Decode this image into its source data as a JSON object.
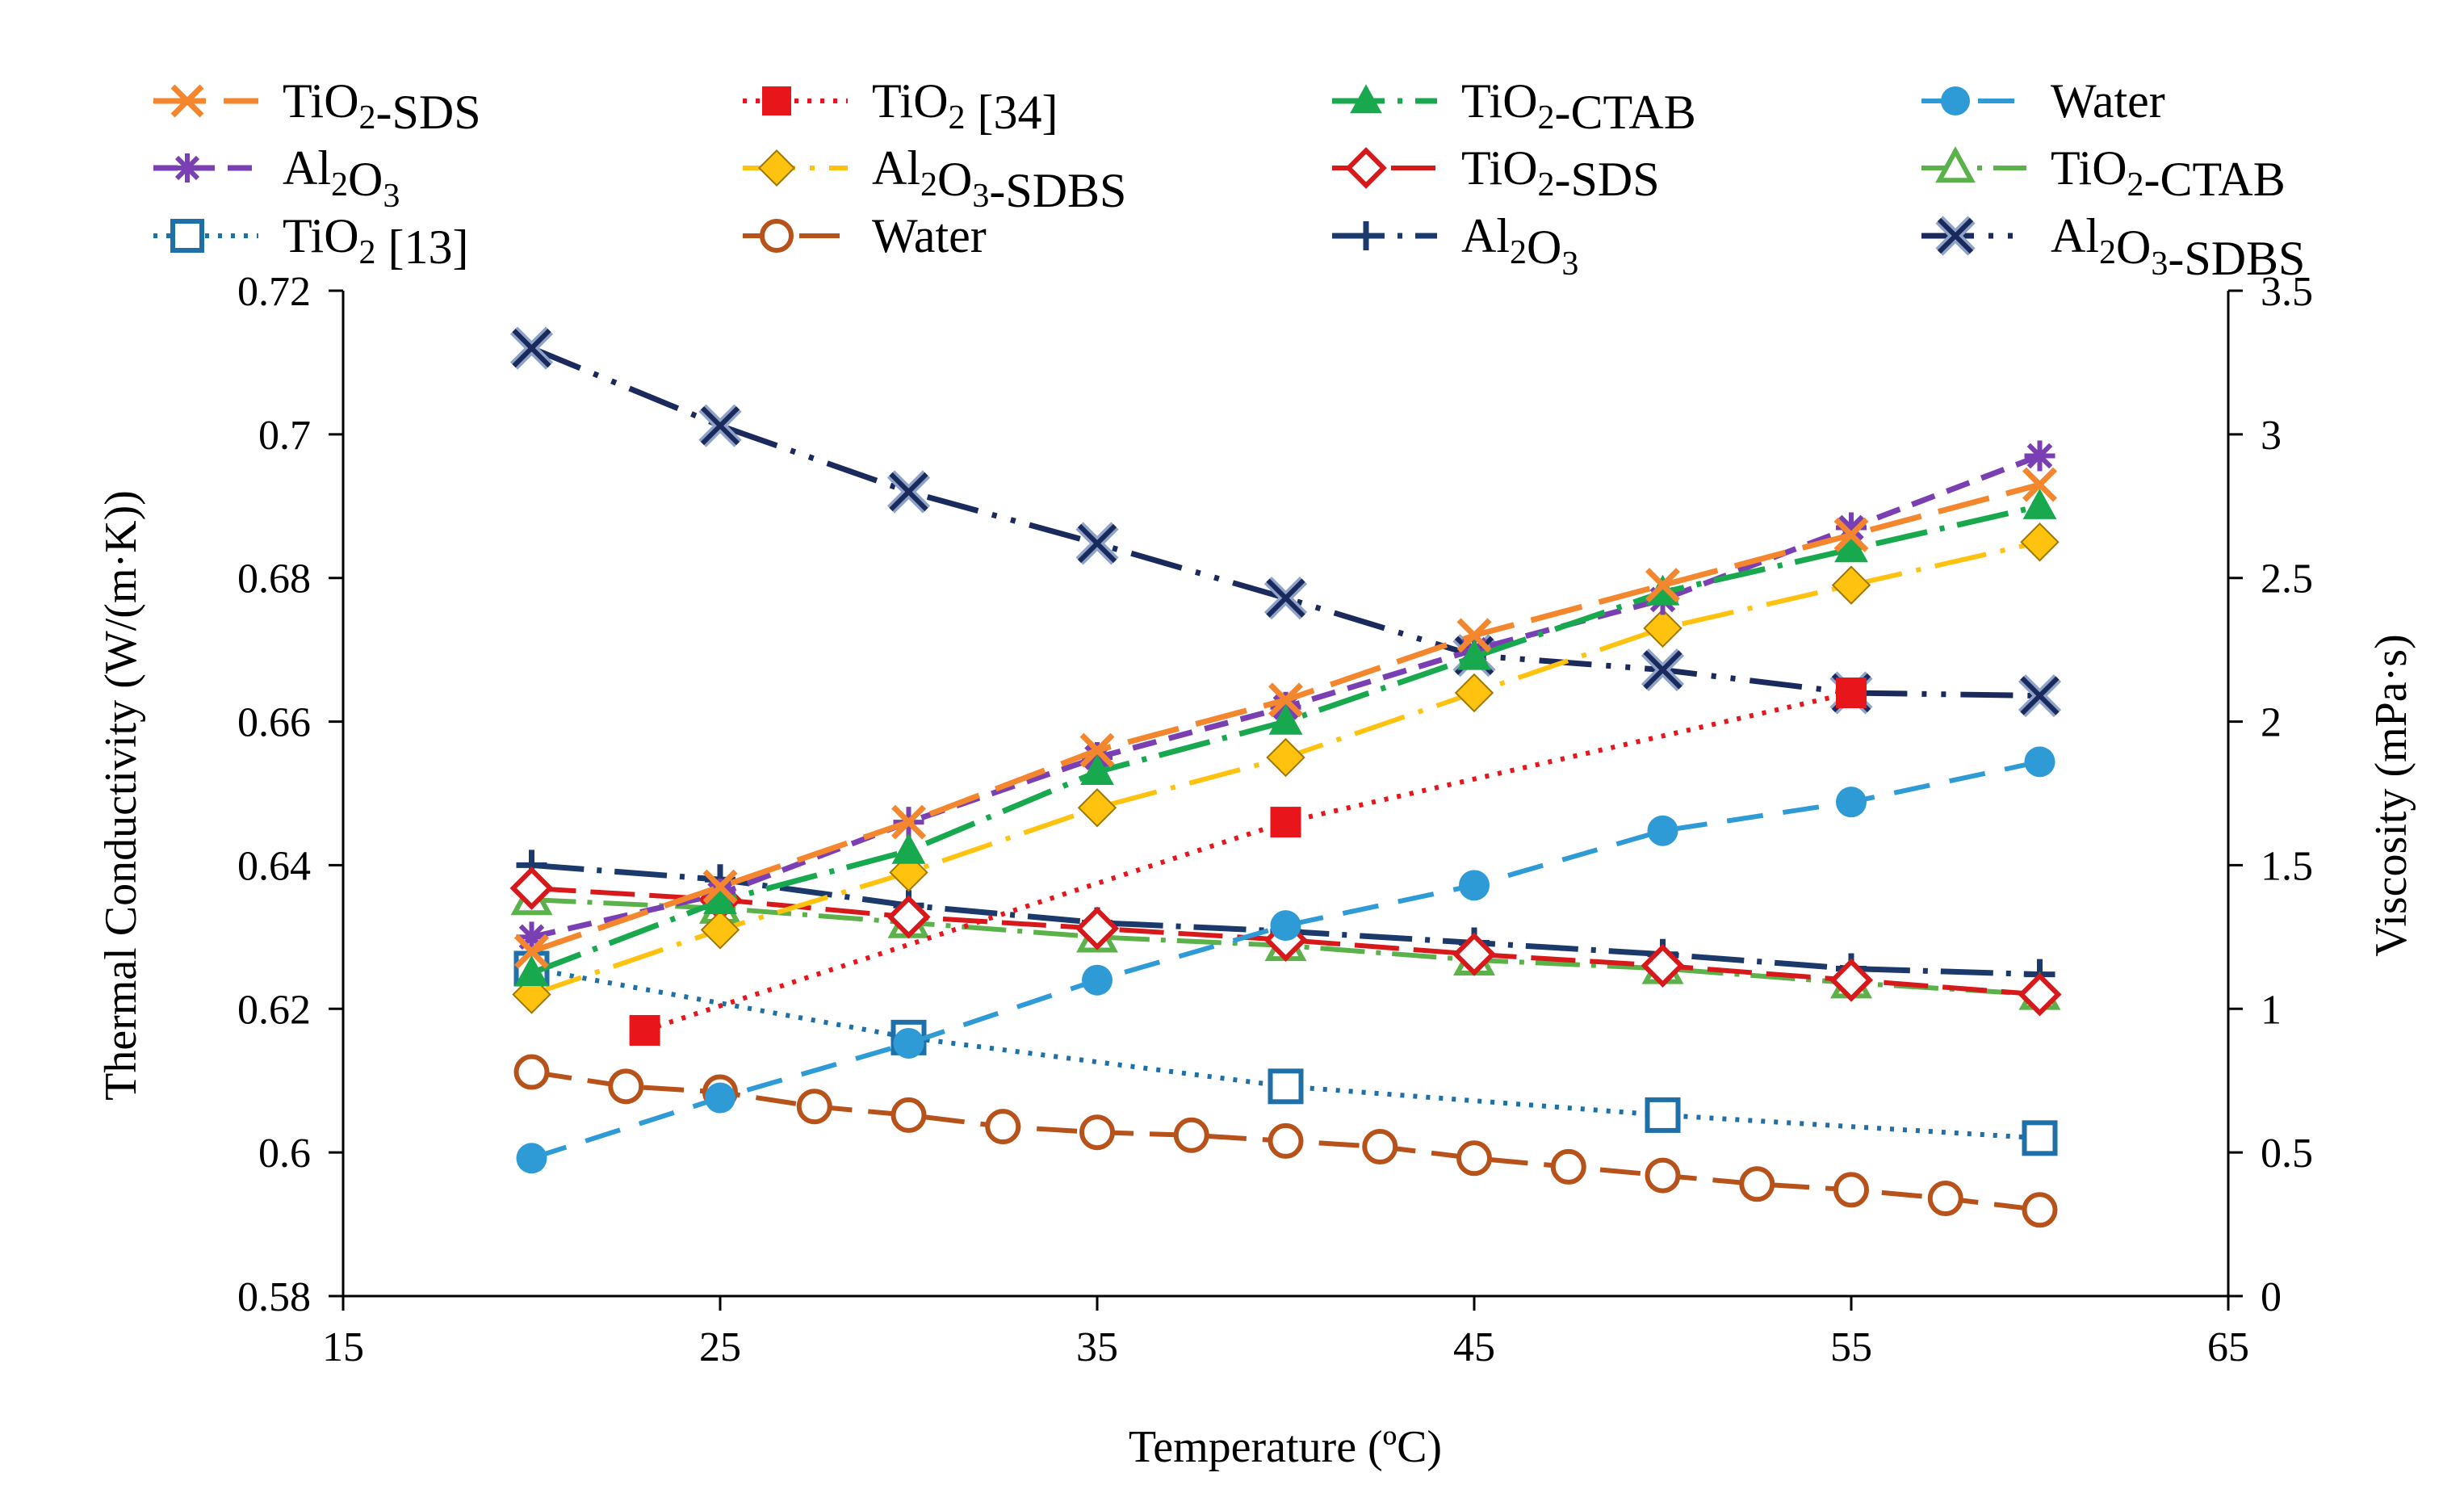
{
  "chart_data": {
    "type": "line",
    "xlabel": "Temperature (ºC)",
    "ylabel_left": "Thermal Conductivity (W/(m·K))",
    "ylabel_right": "Viscosity (mPa·s)",
    "xlim": [
      15,
      65
    ],
    "ylim_left": [
      0.58,
      0.72
    ],
    "ylim_right": [
      0,
      3.5
    ],
    "x_ticks": [
      "15",
      "25",
      "35",
      "45",
      "55",
      "65"
    ],
    "y_left_ticks": [
      "0.58",
      "0.6",
      "0.62",
      "0.64",
      "0.66",
      "0.68",
      "0.7",
      "0.72"
    ],
    "y_right_ticks": [
      "0",
      "0.5",
      "1",
      "1.5",
      "2",
      "2.5",
      "3",
      "3.5"
    ],
    "grid": false,
    "legend_position": "top",
    "series": [
      {
        "name": "TiO2-SDS",
        "base": "TiO",
        "sub": "2",
        "suffix": "-SDS",
        "axis": "left",
        "color": "#F4862E",
        "marker": "x",
        "dash": "65,22",
        "width": 7,
        "x": [
          20,
          25,
          30,
          35,
          40,
          45,
          50,
          55,
          60
        ],
        "y": [
          0.628,
          0.637,
          0.646,
          0.656,
          0.663,
          0.672,
          0.679,
          0.686,
          0.693
        ]
      },
      {
        "name": "TiO2 [34]",
        "base": "TiO",
        "sub": "2",
        "suffix": " [34]",
        "axis": "left",
        "color": "#E8151B",
        "marker": "square-filled",
        "dash": "5,11",
        "width": 6,
        "x": [
          23,
          40,
          55
        ],
        "y": [
          0.617,
          0.646,
          0.664
        ]
      },
      {
        "name": "TiO2-CTAB",
        "base": "TiO",
        "sub": "2",
        "suffix": "-CTAB",
        "axis": "left",
        "color": "#18A94E",
        "marker": "triangle-filled",
        "dash": "65,16,6,16",
        "width": 7,
        "x": [
          20,
          25,
          30,
          35,
          40,
          45,
          50,
          55,
          60
        ],
        "y": [
          0.625,
          0.635,
          0.642,
          0.653,
          0.66,
          0.669,
          0.678,
          0.684,
          0.69
        ]
      },
      {
        "name": "Water",
        "base": "Water",
        "sub": "",
        "suffix": "",
        "axis": "right",
        "color": "#2E9BD6",
        "marker": "circle-filled",
        "dash": "45,25",
        "width": 6,
        "x": [
          20,
          25,
          30,
          35,
          40,
          45,
          50,
          55,
          60
        ],
        "y": [
          0.48,
          0.69,
          0.88,
          1.1,
          1.29,
          1.43,
          1.62,
          1.72,
          1.86
        ]
      },
      {
        "name": "Al2O3",
        "base": "Al",
        "sub": "2",
        "suffix": "O",
        "sub2": "3",
        "axis": "left",
        "color": "#7B3FB4",
        "marker": "asterisk",
        "dash": "30,16",
        "width": 7,
        "x": [
          20,
          25,
          30,
          35,
          40,
          45,
          50,
          55,
          60
        ],
        "y": [
          0.63,
          0.636,
          0.646,
          0.655,
          0.662,
          0.67,
          0.677,
          0.687,
          0.697
        ]
      },
      {
        "name": "Al2O3-SDBS",
        "base": "Al",
        "sub": "2",
        "suffix": "O",
        "sub2": "3",
        "suffix2": "-SDBS",
        "axis": "left",
        "color": "#FFC20E",
        "marker": "diamond-filled",
        "dash": "65,18,6,18",
        "width": 6,
        "x": [
          20,
          25,
          30,
          35,
          40,
          45,
          50,
          55,
          60
        ],
        "y": [
          0.622,
          0.631,
          0.639,
          0.648,
          0.655,
          0.664,
          0.673,
          0.679,
          0.685
        ]
      },
      {
        "name": "TiO2-SDS",
        "base": "TiO",
        "sub": "2",
        "suffix": "-SDS",
        "axis": "right",
        "color": "#D7191C",
        "marker": "diamond-open",
        "dash": "55,18",
        "width": 6,
        "x": [
          20,
          25,
          30,
          35,
          40,
          45,
          50,
          55,
          60
        ],
        "y": [
          1.42,
          1.38,
          1.32,
          1.28,
          1.24,
          1.19,
          1.15,
          1.1,
          1.05
        ]
      },
      {
        "name": "TiO2-CTAB",
        "base": "TiO",
        "sub": "2",
        "suffix": "-CTAB",
        "axis": "right",
        "color": "#5BB24A",
        "marker": "triangle-open",
        "dash": "55,14,6,14",
        "width": 6,
        "x": [
          20,
          25,
          30,
          35,
          40,
          45,
          50,
          55,
          60
        ],
        "y": [
          1.38,
          1.35,
          1.3,
          1.25,
          1.22,
          1.17,
          1.14,
          1.09,
          1.05
        ]
      },
      {
        "name": "TiO2 [13]",
        "base": "TiO",
        "sub": "2",
        "suffix": " [13]",
        "axis": "right",
        "color": "#1F6FA8",
        "marker": "square-open",
        "dash": "5,11",
        "width": 6,
        "x": [
          20,
          30,
          40,
          50,
          60
        ],
        "y": [
          1.14,
          0.9,
          0.73,
          0.63,
          0.55
        ]
      },
      {
        "name": "Water",
        "base": "Water",
        "sub": "",
        "suffix": "",
        "axis": "right",
        "color": "#B8521B",
        "marker": "circle-open",
        "dash": "50,20",
        "width": 6,
        "x": [
          20,
          22.5,
          25,
          27.5,
          30,
          32.5,
          35,
          37.5,
          40,
          42.5,
          45,
          47.5,
          50,
          52.5,
          55,
          57.5,
          60
        ],
        "y": [
          0.78,
          0.73,
          0.71,
          0.66,
          0.63,
          0.59,
          0.57,
          0.56,
          0.54,
          0.52,
          0.48,
          0.45,
          0.42,
          0.39,
          0.37,
          0.34,
          0.3
        ]
      },
      {
        "name": "Al2O3",
        "base": "Al",
        "sub": "2",
        "suffix": "O",
        "sub2": "3",
        "axis": "right",
        "color": "#1B3A6B",
        "marker": "plus",
        "dash": "65,16,6,16",
        "width": 7,
        "x": [
          20,
          25,
          30,
          35,
          40,
          45,
          50,
          55,
          60
        ],
        "y": [
          1.5,
          1.45,
          1.36,
          1.3,
          1.27,
          1.23,
          1.19,
          1.14,
          1.12
        ]
      },
      {
        "name": "Al2O3-SDBS",
        "base": "Al",
        "sub": "2",
        "suffix": "O",
        "sub2": "3",
        "suffix2": "-SDBS",
        "axis": "right",
        "color": "#1B2A5C",
        "marker": "x-thick",
        "dash": "65,18,6,18,6,18",
        "width": 7,
        "x": [
          20,
          25,
          30,
          35,
          40,
          45,
          50,
          55,
          60
        ],
        "y": [
          3.3,
          3.03,
          2.8,
          2.62,
          2.43,
          2.23,
          2.18,
          2.1,
          2.09
        ]
      }
    ]
  }
}
